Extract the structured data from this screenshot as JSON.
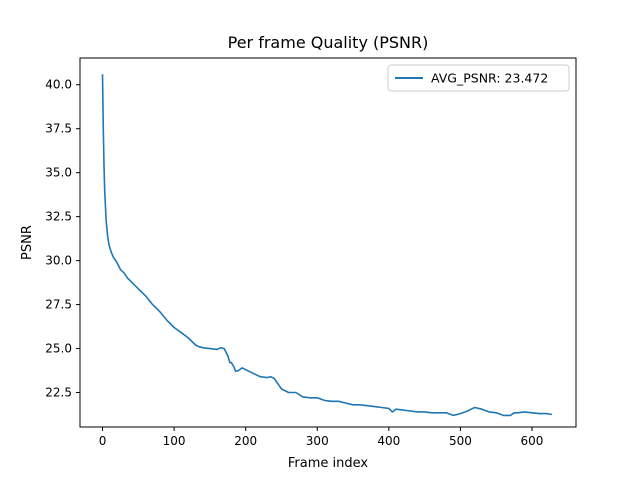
{
  "chart_data": {
    "type": "line",
    "title": "Per frame Quality (PSNR)",
    "xlabel": "Frame index",
    "ylabel": "PSNR",
    "xlim": [
      -31.5,
      661.5
    ],
    "ylim": [
      20.54,
      41.52
    ],
    "xticks": [
      0,
      100,
      200,
      300,
      400,
      500,
      600
    ],
    "yticks": [
      22.5,
      25.0,
      27.5,
      30.0,
      32.5,
      35.0,
      37.5,
      40.0
    ],
    "ytick_labels": [
      "22.5",
      "25.0",
      "27.5",
      "30.0",
      "32.5",
      "35.0",
      "37.5",
      "40.0"
    ],
    "grid": false,
    "legend_position": "top-right",
    "series": [
      {
        "name": "AVG_PSNR: 23.472",
        "color": "#1f77b4",
        "x": [
          0,
          1,
          2,
          3,
          5,
          7,
          9,
          12,
          15,
          20,
          25,
          30,
          35,
          40,
          50,
          60,
          70,
          80,
          90,
          100,
          110,
          120,
          130,
          135,
          140,
          150,
          160,
          165,
          170,
          175,
          178,
          180,
          183,
          186,
          190,
          195,
          200,
          210,
          220,
          230,
          235,
          240,
          245,
          250,
          260,
          270,
          280,
          290,
          300,
          310,
          320,
          330,
          340,
          350,
          360,
          370,
          380,
          390,
          400,
          405,
          410,
          420,
          430,
          440,
          450,
          460,
          470,
          480,
          490,
          500,
          510,
          515,
          520,
          530,
          540,
          550,
          560,
          570,
          575,
          580,
          590,
          600,
          610,
          620,
          628
        ],
        "values": [
          40.6,
          37.5,
          35.4,
          34.0,
          32.3,
          31.4,
          30.9,
          30.5,
          30.2,
          29.9,
          29.5,
          29.3,
          29.0,
          28.8,
          28.4,
          28.0,
          27.5,
          27.1,
          26.6,
          26.2,
          25.9,
          25.6,
          25.2,
          25.1,
          25.05,
          25.0,
          24.95,
          25.05,
          25.0,
          24.6,
          24.2,
          24.2,
          24.0,
          23.7,
          23.75,
          23.9,
          23.8,
          23.6,
          23.4,
          23.35,
          23.4,
          23.3,
          23.0,
          22.7,
          22.5,
          22.5,
          22.25,
          22.2,
          22.2,
          22.05,
          22.0,
          22.0,
          21.9,
          21.8,
          21.8,
          21.75,
          21.7,
          21.65,
          21.6,
          21.4,
          21.55,
          21.5,
          21.45,
          21.4,
          21.4,
          21.35,
          21.35,
          21.35,
          21.2,
          21.3,
          21.45,
          21.55,
          21.65,
          21.55,
          21.4,
          21.35,
          21.2,
          21.2,
          21.35,
          21.35,
          21.4,
          21.35,
          21.3,
          21.3,
          21.25
        ]
      }
    ]
  }
}
